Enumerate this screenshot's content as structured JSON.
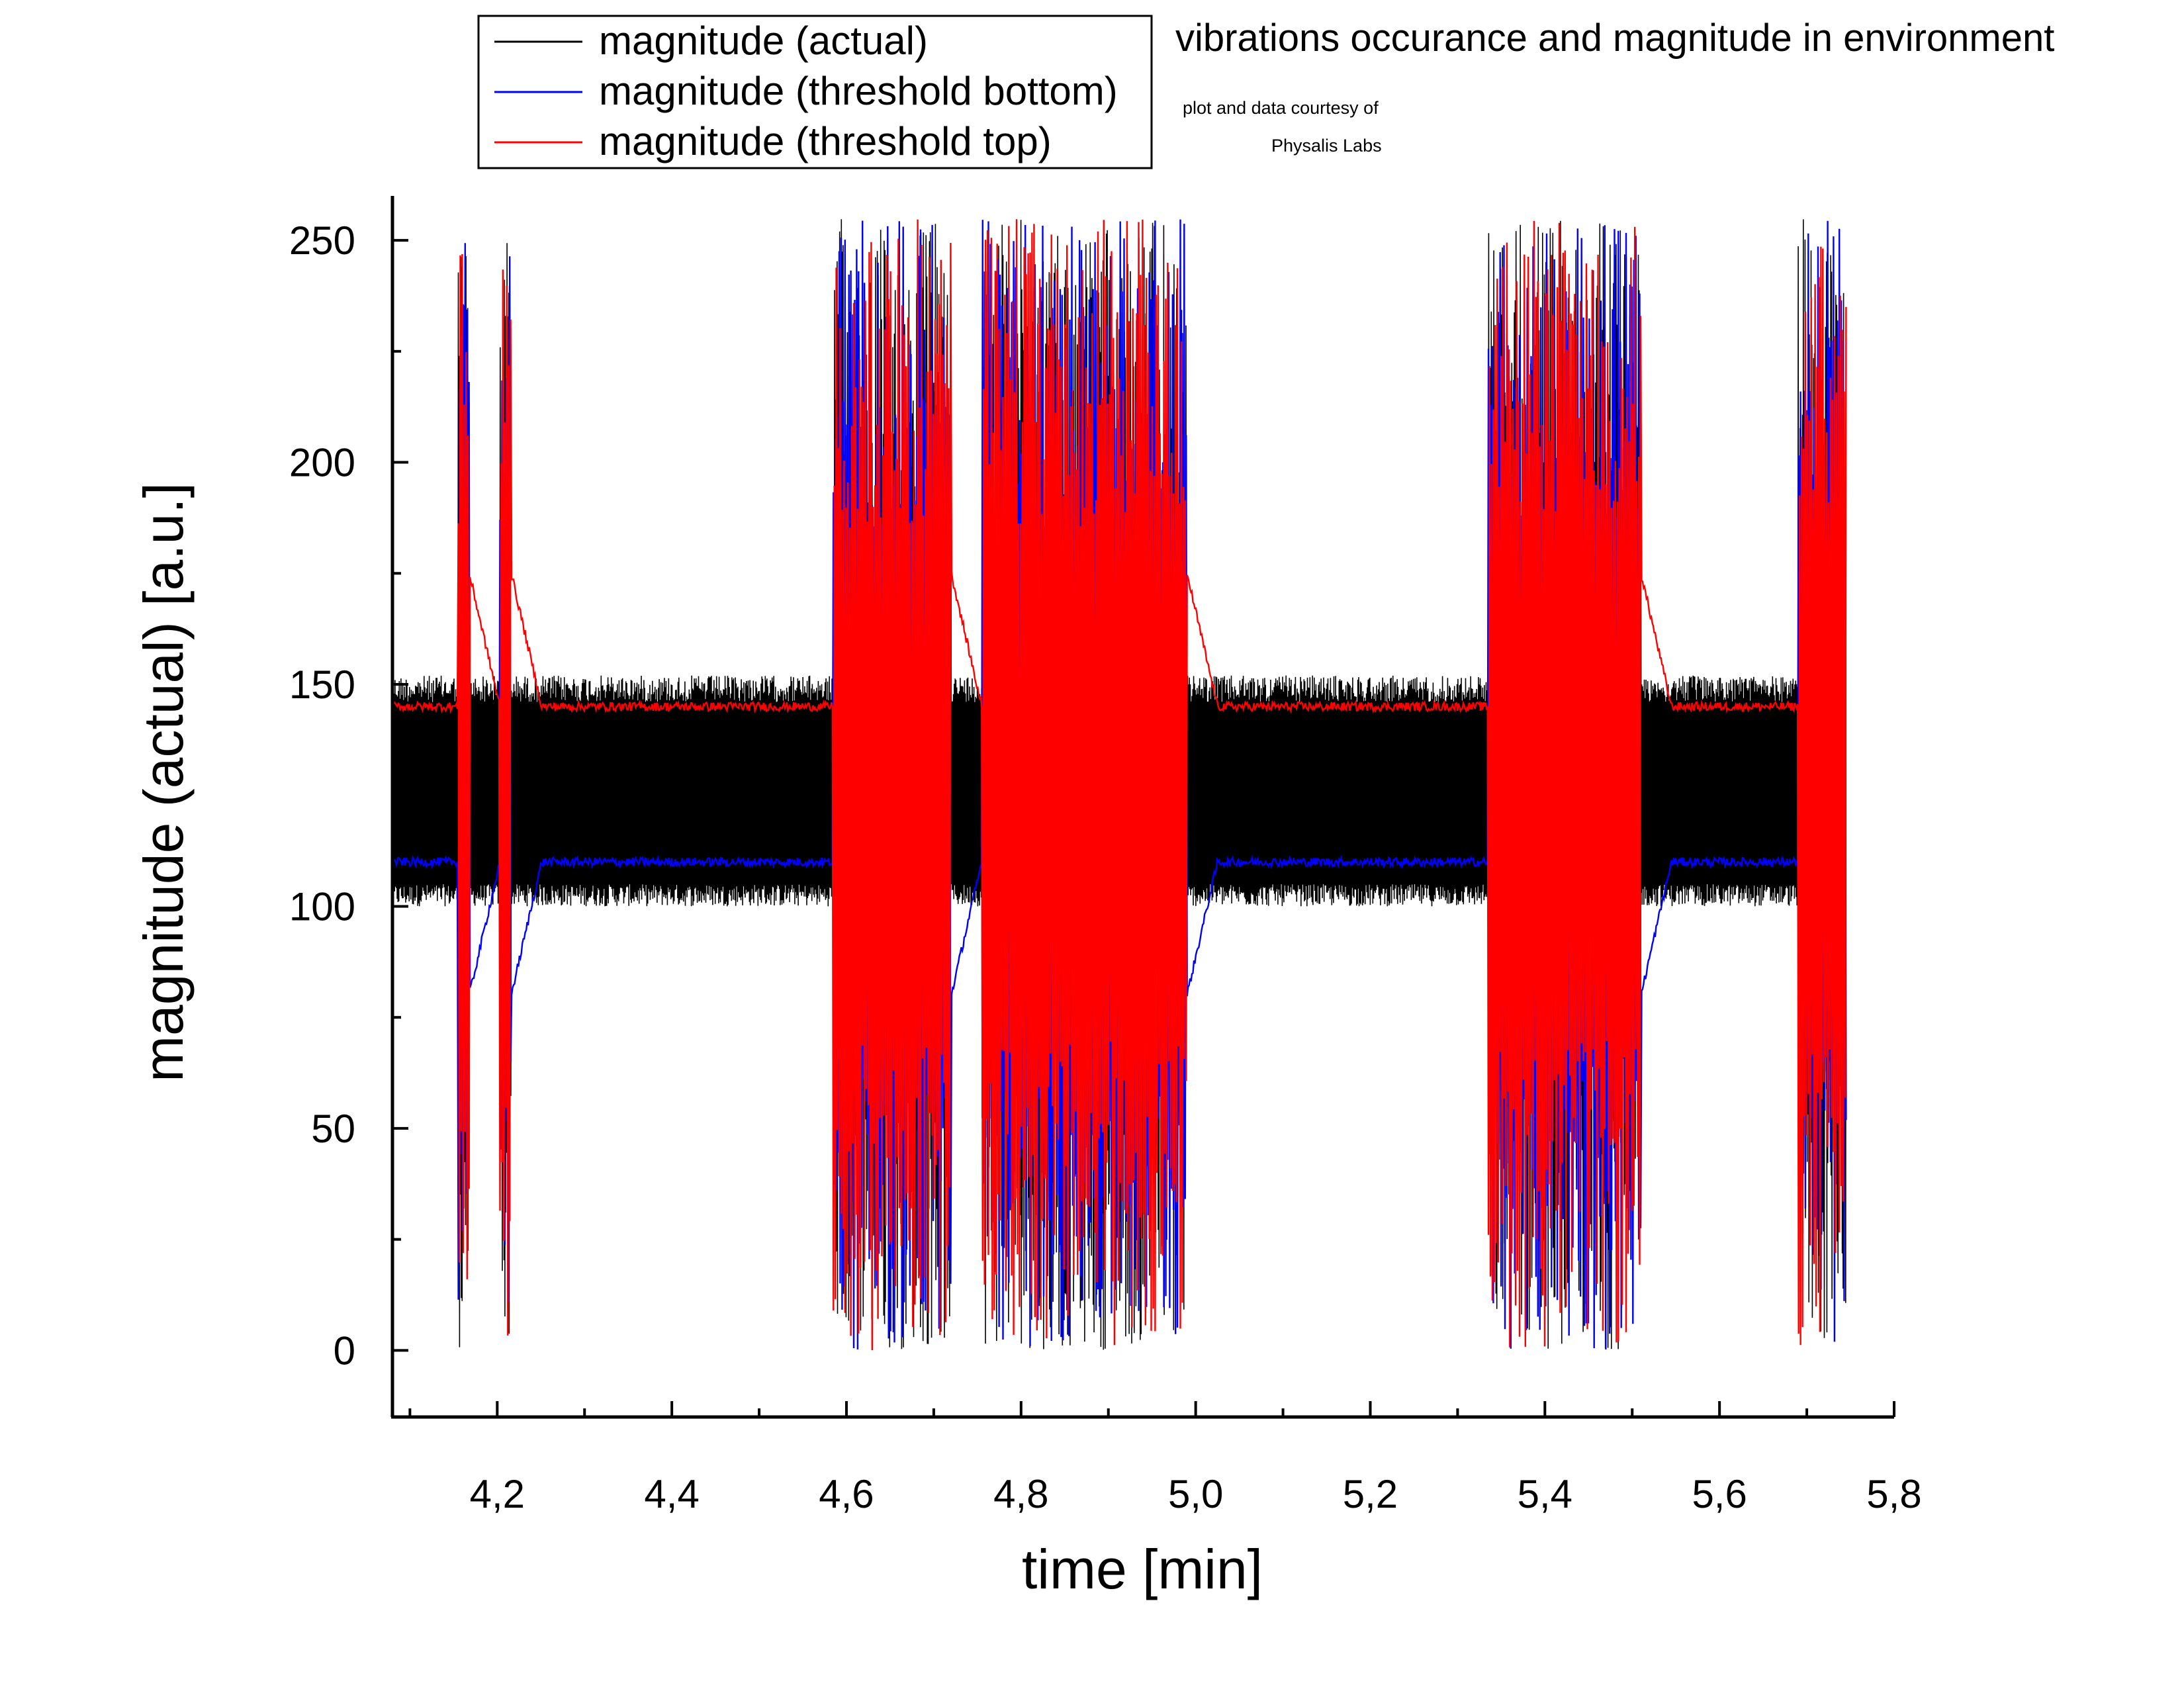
{
  "chart_data": {
    "type": "line",
    "title": "vibrations occurance and magnitude in environment",
    "credit": [
      "plot and data courtesy of",
      "Physalis Labs"
    ],
    "xlabel": "time [min]",
    "ylabel": "magnitude (actual) [a.u.]",
    "xlim": [
      4.08,
      5.8
    ],
    "ylim": [
      -15,
      260
    ],
    "x_ticks": [
      4.2,
      4.4,
      4.6,
      4.8,
      5.0,
      5.2,
      5.4,
      5.6,
      5.8
    ],
    "x_tick_labels": [
      "4,2",
      "4,4",
      "4,6",
      "4,8",
      "5,0",
      "5,2",
      "5,4",
      "5,6",
      "5,8"
    ],
    "y_ticks": [
      0,
      50,
      100,
      150,
      200,
      250
    ],
    "y_tick_labels": [
      "0",
      "50",
      "100",
      "150",
      "200",
      "250"
    ],
    "grid": false,
    "legend_position": "top-left, above plot area",
    "quiet_levels": {
      "actual_band": [
        100,
        152
      ],
      "threshold_bottom": 110,
      "threshold_top": 145
    },
    "burst_intervals": [
      {
        "start": 4.155,
        "end": 4.168
      },
      {
        "start": 4.203,
        "end": 4.216
      },
      {
        "start": 4.585,
        "end": 4.72
      },
      {
        "start": 4.755,
        "end": 4.99
      },
      {
        "start": 5.335,
        "end": 5.51
      },
      {
        "start": 5.69,
        "end": 5.745
      }
    ],
    "burst_range": [
      0,
      255
    ],
    "series": [
      {
        "name": "magnitude (actual)",
        "color": "#000000"
      },
      {
        "name": "magnitude (threshold bottom)",
        "color": "#0000ff"
      },
      {
        "name": "magnitude (threshold top)",
        "color": "#ff0000"
      }
    ]
  }
}
